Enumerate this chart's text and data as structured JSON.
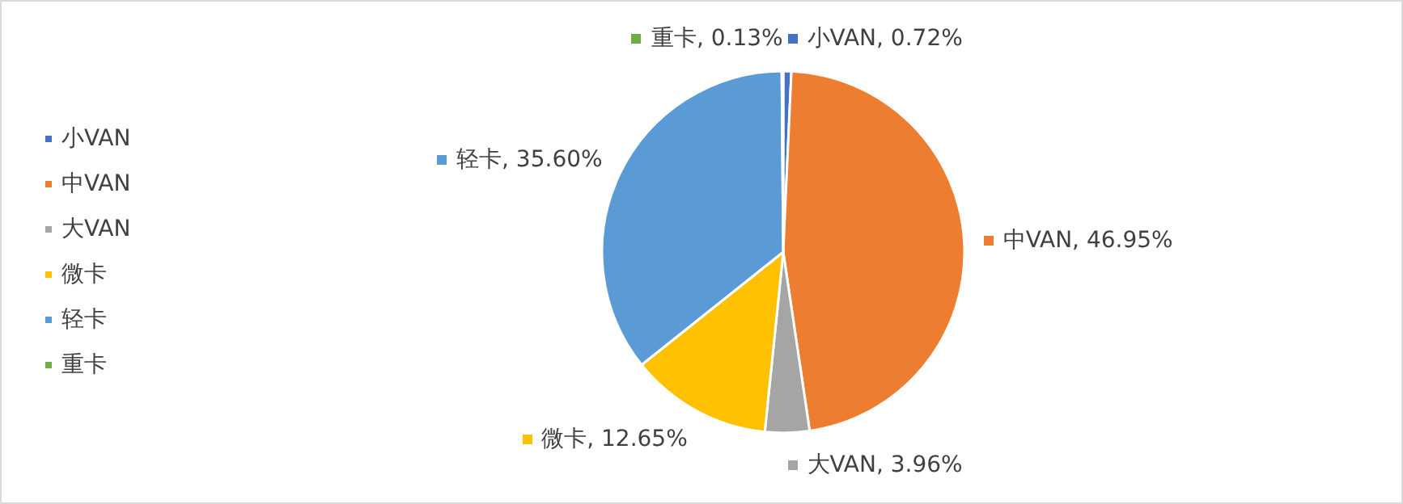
{
  "chart_data": {
    "type": "pie",
    "categories": [
      "小VAN",
      "中VAN",
      "大VAN",
      "微卡",
      "轻卡",
      "重卡"
    ],
    "values": [
      0.72,
      46.95,
      3.96,
      12.65,
      35.6,
      0.13
    ],
    "colors": [
      "#4472c4",
      "#ed7d31",
      "#a5a5a5",
      "#ffc000",
      "#5b9bd5",
      "#70ad47"
    ],
    "value_labels": [
      "小VAN, 0.72%",
      "中VAN, 46.95%",
      "大VAN, 3.96%",
      "微卡, 12.65%",
      "轻卡, 35.60%",
      "重卡, 0.13%"
    ],
    "legend": "left"
  }
}
